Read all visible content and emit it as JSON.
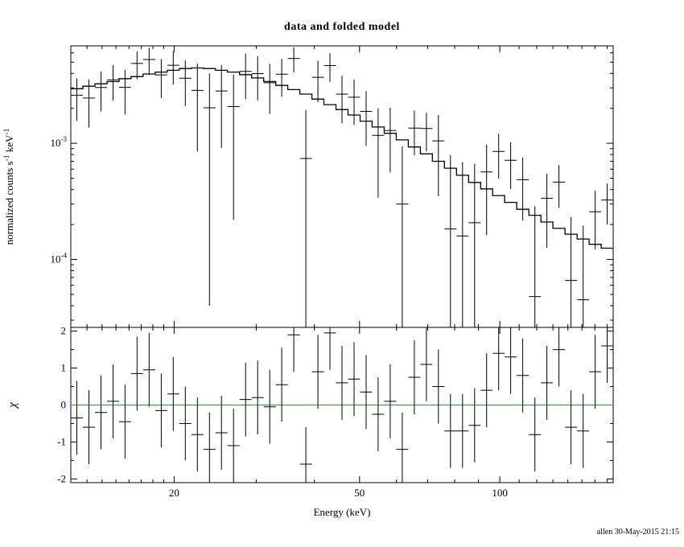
{
  "title": "data and folded model",
  "footer": "allen 30-May-2015 21:15",
  "colors": {
    "background": "#ffffff",
    "axis": "#000000",
    "data": "#000000",
    "model": "#000000",
    "zero_line": "#00cc00"
  },
  "chart_data": {
    "type": "scatter",
    "subtype": "x-ray spectrum with folded model and chi residuals",
    "title": "data and folded model",
    "xlabel": "Energy (keV)",
    "xscale": "log",
    "xlim": [
      12.0,
      175.1
    ],
    "x_major_ticks": [
      20,
      50,
      100
    ],
    "bin_edges": [
      12.0,
      12.74,
      13.52,
      14.35,
      15.23,
      16.16,
      17.15,
      18.21,
      19.33,
      20.51,
      21.77,
      23.11,
      24.53,
      26.03,
      27.63,
      29.33,
      31.13,
      33.04,
      35.06,
      37.22,
      39.5,
      41.92,
      44.5,
      47.23,
      50.13,
      53.2,
      56.47,
      59.93,
      63.61,
      67.52,
      71.66,
      76.06,
      80.73,
      85.68,
      90.94,
      96.52,
      102.4,
      108.7,
      115.4,
      122.5,
      130.0,
      138.0,
      146.5,
      155.5,
      165.0,
      175.1
    ],
    "top_panel": {
      "ylabel": "normalized counts s⁻¹ keV⁻¹",
      "ylabel_parts": [
        {
          "text": "normalized counts s"
        },
        {
          "text": "-1",
          "sup": true
        },
        {
          "text": " keV"
        },
        {
          "text": "-1",
          "sup": true
        }
      ],
      "yscale": "log",
      "ylim": [
        2.6e-05,
        0.0069
      ],
      "y_major_ticks": [
        0.0001,
        0.001
      ],
      "series": [
        {
          "name": "data",
          "style": "errorbar-cross",
          "values": [
            0.00259,
            0.00245,
            0.00302,
            0.00352,
            0.00303,
            0.00487,
            0.00526,
            0.00388,
            0.0047,
            0.00363,
            0.00285,
            0.00202,
            0.00282,
            0.00207,
            0.00416,
            0.00398,
            0.00332,
            0.00393,
            0.00538,
            0.00074,
            0.0037,
            0.00467,
            0.00265,
            0.00249,
            0.00188,
            0.00117,
            0.00129,
            0.0003,
            0.00135,
            0.00134,
            0.00105,
            0.000183,
            0.000159,
            0.000207,
            0.000567,
            0.000852,
            0.000713,
            0.000486,
            4.8e-05,
            0.000336,
            0.000463,
            6.6e-05,
            4.5e-05,
            0.000257,
            0.000325
          ],
          "yerr": [
            0.00103,
            0.00109,
            0.00114,
            0.00119,
            0.00126,
            0.00131,
            0.00138,
            0.00143,
            0.00149,
            0.00154,
            0.002,
            0.00198,
            0.00191,
            0.00185,
            0.00176,
            0.00164,
            0.00153,
            0.00142,
            0.00131,
            0.00119,
            0.00144,
            0.00129,
            0.00117,
            0.00105,
            0.00093,
            0.00083,
            0.00073,
            0.00064,
            0.00056,
            0.00049,
            0.0007,
            0.00061,
            0.00053,
            0.00046,
            0.000405,
            0.000355,
            0.00031,
            0.00027,
            0.00024,
            0.00021,
            0.000185,
            0.000165,
            0.00015,
            0.000135,
            0.000125
          ]
        },
        {
          "name": "folded model",
          "style": "step-line",
          "values": [
            0.00295,
            0.0031,
            0.00325,
            0.0034,
            0.0036,
            0.00375,
            0.00395,
            0.0041,
            0.00425,
            0.0044,
            0.00445,
            0.0044,
            0.00425,
            0.0041,
            0.0039,
            0.00365,
            0.0034,
            0.00315,
            0.0029,
            0.00265,
            0.0024,
            0.00215,
            0.00195,
            0.00175,
            0.00155,
            0.00138,
            0.00122,
            0.00107,
            0.00093,
            0.00081,
            0.0007,
            0.00061,
            0.00053,
            0.00046,
            0.000405,
            0.000355,
            0.00031,
            0.00027,
            0.00024,
            0.00021,
            0.000185,
            0.000165,
            0.00015,
            0.000135,
            0.000125
          ]
        }
      ]
    },
    "bottom_panel": {
      "ylabel": "χ",
      "yscale": "linear",
      "ylim": [
        -2.1,
        2.1
      ],
      "y_major_ticks": [
        -2,
        -1,
        0,
        1,
        2
      ],
      "series": [
        {
          "name": "chi residuals",
          "style": "errorbar-cross",
          "values": [
            -0.35,
            -0.6,
            -0.2,
            0.1,
            -0.45,
            0.85,
            0.95,
            -0.15,
            0.3,
            -0.5,
            -0.8,
            -1.2,
            -0.75,
            -1.1,
            0.15,
            0.2,
            -0.05,
            0.55,
            1.9,
            -1.6,
            0.9,
            1.95,
            0.6,
            0.7,
            0.35,
            -0.25,
            0.1,
            -1.2,
            0.75,
            1.1,
            0.5,
            -0.7,
            -0.7,
            -0.55,
            0.4,
            1.4,
            1.3,
            0.8,
            -0.8,
            0.6,
            1.5,
            -0.6,
            -0.7,
            0.9,
            1.6
          ],
          "yerr_constant": 1.0
        },
        {
          "name": "zero line",
          "style": "hline",
          "y": 0.0,
          "color": "#00cc00"
        }
      ]
    }
  }
}
